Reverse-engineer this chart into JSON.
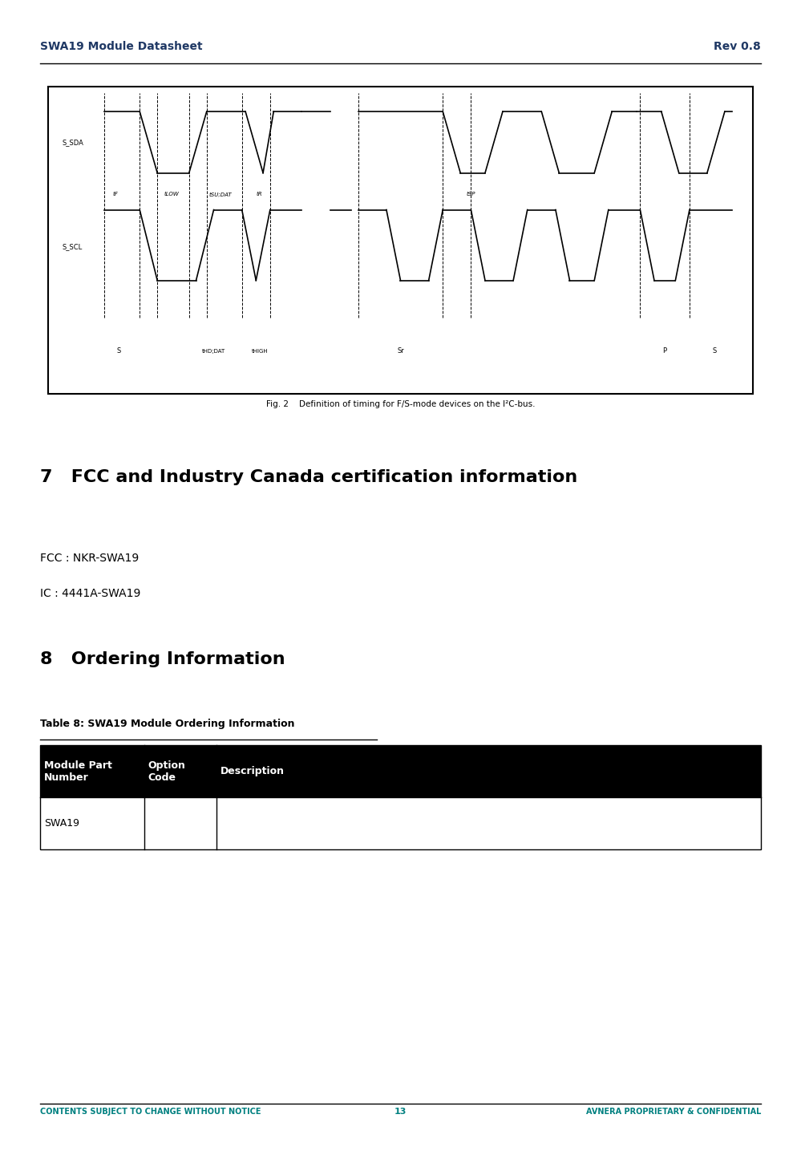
{
  "header_left": "SWA19 Module Datasheet",
  "header_right": "Rev 0.8",
  "header_color": "#1f3864",
  "footer_left": "CONTENTS SUBJECT TO CHANGE WITHOUT NOTICE",
  "footer_center": "13",
  "footer_right": "AVNERA PROPRIETARY & CONFIDENTIAL",
  "footer_color": "#008080",
  "section7_title": "7   FCC and Industry Canada certification information",
  "fcc_line": "FCC : NKR-SWA19",
  "ic_line": "IC : 4441A-SWA19",
  "section8_title": "8   Ordering Information",
  "table_caption": "Table 8: SWA19 Module Ordering Information",
  "table_headers": [
    "Module Part\nNumber",
    "Option\nCode",
    "Description"
  ],
  "table_row": [
    "SWA19",
    "",
    ""
  ],
  "fig_caption": "Fig. 2    Definition of timing for F/S-mode devices on the I²C-bus.",
  "bg_color": "#ffffff",
  "text_color": "#000000",
  "body_fontsize": 10,
  "title_fontsize": 16,
  "header_fontsize": 10,
  "footer_fontsize": 7,
  "table_caption_fontsize": 9,
  "table_header_fontsize": 9,
  "table_data_fontsize": 9
}
